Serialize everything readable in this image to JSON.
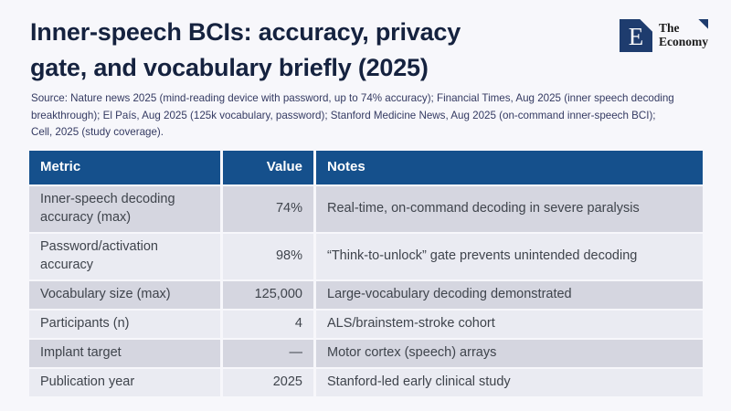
{
  "page": {
    "background": "#f7f7fb"
  },
  "header": {
    "title_line1": "Inner-speech BCIs: accuracy, privacy",
    "title_line2": "gate, and vocabulary briefly (2025)",
    "title_color": "#15223f",
    "source": "Source: Nature news 2025 (mind-reading device with password, up to 74% accuracy); Financial Times, Aug 2025 (inner speech decoding breakthrough); El País, Aug 2025 (125k vocabulary, password); Stanford Medicine News, Aug 2025 (on-command inner-speech BCI); Cell, 2025 (study coverage)."
  },
  "logo": {
    "letter": "E",
    "name_line1": "The",
    "name_line2": "Economy",
    "square_color": "#1e3c6e"
  },
  "table": {
    "header_bg": "#15508c",
    "row_color_dark": "#d5d6e0",
    "row_color_light": "#eaebf2",
    "columns": {
      "metric": "Metric",
      "value": "Value",
      "notes": "Notes"
    },
    "rows": [
      {
        "metric": "Inner-speech decoding accuracy (max)",
        "value": "74%",
        "notes": "Real-time, on-command decoding in severe paralysis"
      },
      {
        "metric": "Password/activation accuracy",
        "value": "98%",
        "notes": "“Think-to-unlock” gate prevents unintended decoding"
      },
      {
        "metric": "Vocabulary size (max)",
        "value": "125,000",
        "notes": "Large-vocabulary decoding demonstrated"
      },
      {
        "metric": "Participants (n)",
        "value": "4",
        "notes": "ALS/brainstem-stroke cohort"
      },
      {
        "metric": "Implant target",
        "value": "—",
        "notes": "Motor cortex (speech) arrays"
      },
      {
        "metric": "Publication year",
        "value": "2025",
        "notes": "Stanford-led early clinical study"
      }
    ]
  },
  "chart_data": {
    "type": "table",
    "title": "Inner-speech BCIs: accuracy, privacy gate, and vocabulary briefly (2025)",
    "columns": [
      "Metric",
      "Value",
      "Notes"
    ],
    "rows": [
      [
        "Inner-speech decoding accuracy (max)",
        "74%",
        "Real-time, on-command decoding in severe paralysis"
      ],
      [
        "Password/activation accuracy",
        "98%",
        "“Think-to-unlock” gate prevents unintended decoding"
      ],
      [
        "Vocabulary size (max)",
        "125,000",
        "Large-vocabulary decoding demonstrated"
      ],
      [
        "Participants (n)",
        "4",
        "ALS/brainstem-stroke cohort"
      ],
      [
        "Implant target",
        "—",
        "Motor cortex (speech) arrays"
      ],
      [
        "Publication year",
        "2025",
        "Stanford-led early clinical study"
      ]
    ],
    "notes": "Numeric values depicted: 74 (% accuracy), 98 (% password accuracy), 125000 (vocabulary), 4 (participants), 2025 (year)"
  }
}
